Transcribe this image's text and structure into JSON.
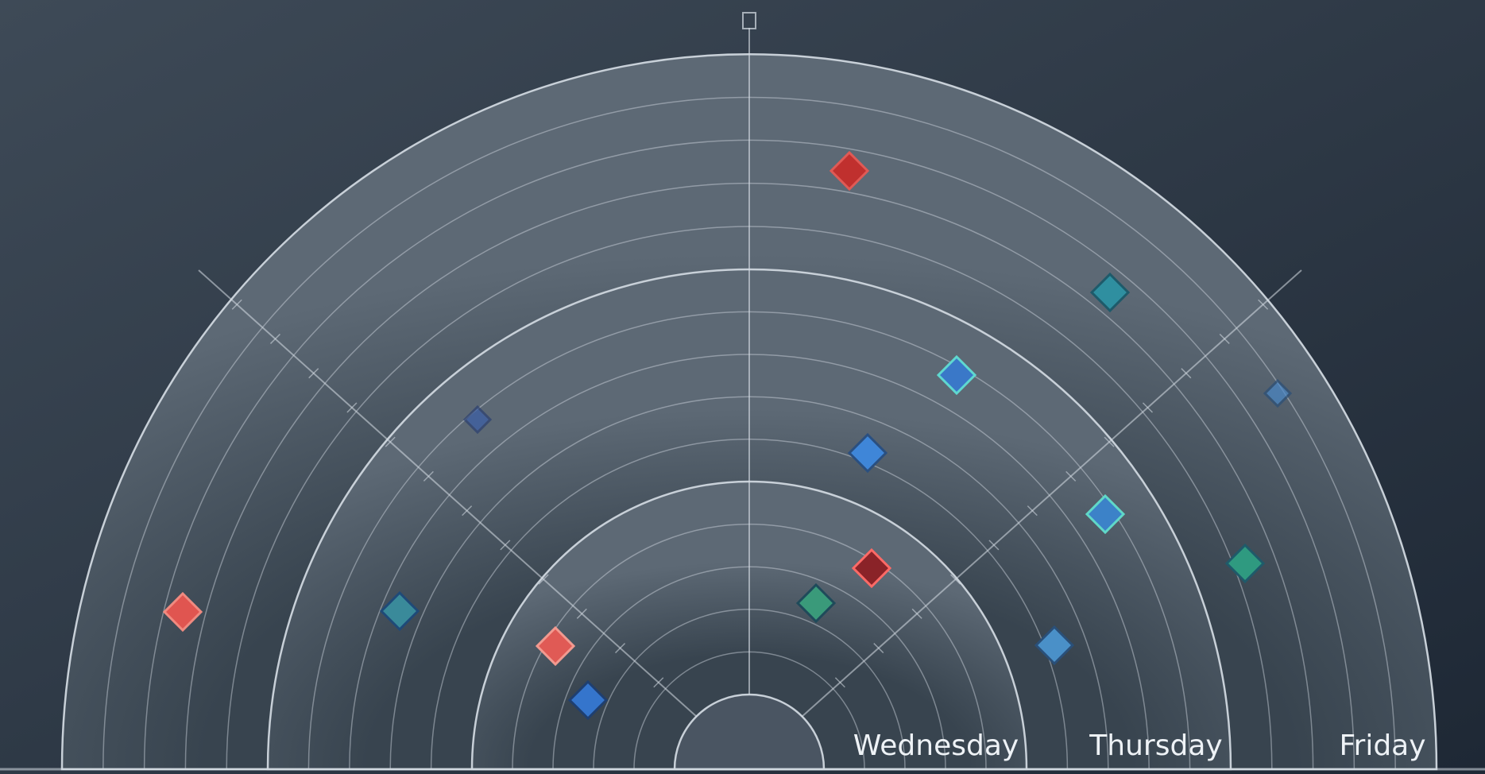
{
  "bands": [
    {
      "label": "Wednesday"
    },
    {
      "label": "Thursday"
    },
    {
      "label": "Friday"
    }
  ]
}
